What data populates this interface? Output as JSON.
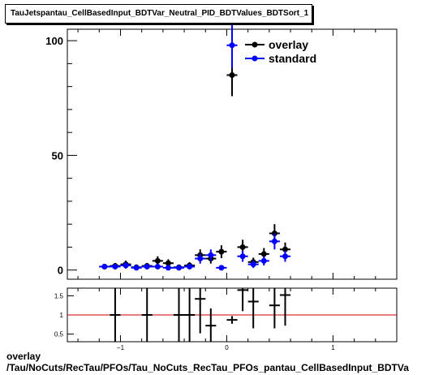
{
  "title": "TauJetspantau_CellBasedInput_BDTVar_Neutral_PID_BDTValues_BDTSort_1",
  "footer": {
    "line1": "overlay",
    "line2": "/Tau/NoCuts/RecTau/PFOs/Tau_NoCuts_RecTau_PFOs_pantau_CellBasedInput_BDTVa"
  },
  "colors": {
    "overlay": "#000000",
    "standard": "#0000ff",
    "ratio_line": "#cc0000"
  },
  "chart_data": [
    {
      "type": "scatter",
      "title": "TauJetspantau_CellBasedInput_BDTVar_Neutral_PID_BDTValues_BDTSort_1",
      "xlim": [
        -1.5,
        1.6
      ],
      "ylim": [
        -4,
        105
      ],
      "x_ticks": [
        -1,
        0,
        1
      ],
      "x_tick_labels": [
        "",
        "",
        ""
      ],
      "y_ticks": [
        0,
        50,
        100
      ],
      "y_tick_labels": [
        "0",
        "50",
        "100"
      ],
      "legend_position": "top-right",
      "series": [
        {
          "name": "overlay",
          "color": "#000000",
          "x": [
            -1.15,
            -1.05,
            -0.95,
            -0.85,
            -0.75,
            -0.65,
            -0.55,
            -0.45,
            -0.35,
            -0.25,
            -0.15,
            -0.05,
            0.05,
            0.15,
            0.25,
            0.35,
            0.45,
            0.55
          ],
          "y": [
            1.5,
            1.8,
            2.5,
            1.2,
            1.8,
            4,
            3,
            1.2,
            2,
            6.5,
            5,
            8,
            85,
            10,
            3.5,
            7,
            16,
            9
          ],
          "yerr": [
            1.2,
            1.3,
            1.6,
            1.1,
            1.3,
            2,
            1.7,
            1.1,
            1.4,
            2.5,
            2.2,
            2.8,
            9.2,
            3.2,
            1.9,
            2.6,
            4,
            3
          ]
        },
        {
          "name": "standard",
          "color": "#0000ff",
          "x": [
            -1.15,
            -1.05,
            -0.95,
            -0.85,
            -0.75,
            -0.65,
            -0.55,
            -0.45,
            -0.35,
            -0.25,
            -0.15,
            -0.05,
            0.05,
            0.15,
            0.25,
            0.35,
            0.45,
            0.55
          ],
          "y": [
            1.5,
            1.5,
            2,
            1,
            1.5,
            1.5,
            1,
            1,
            1.5,
            5,
            6.5,
            1,
            98,
            6,
            2.5,
            4,
            12.5,
            6
          ],
          "yerr": [
            1.2,
            1.2,
            1.4,
            1,
            1.2,
            1.2,
            1,
            1,
            1.2,
            2.2,
            2.5,
            1,
            9.9,
            2.4,
            1.6,
            2,
            3.5,
            2.4
          ]
        }
      ]
    },
    {
      "type": "scatter",
      "title": "",
      "xlim": [
        -1.5,
        1.6
      ],
      "ylim": [
        0.3,
        1.7
      ],
      "x_ticks": [
        -1,
        0,
        1
      ],
      "x_tick_labels": [
        "−1",
        "0",
        "1"
      ],
      "y_ticks": [
        0.5,
        1,
        1.5
      ],
      "y_tick_labels": [
        "0.5",
        "1",
        "1.5"
      ],
      "reference_line": 1,
      "series": [
        {
          "name": "ratio",
          "color": "#000000",
          "x": [
            -1.05,
            -0.75,
            -0.45,
            -0.35,
            -0.25,
            -0.15,
            0.05,
            0.15,
            0.25,
            0.45,
            0.55
          ],
          "y": [
            1.0,
            1.0,
            1.0,
            1.0,
            1.42,
            0.72,
            0.87,
            1.65,
            1.35,
            1.25,
            1.52
          ],
          "yerr": [
            1.1,
            1.1,
            1.1,
            1.1,
            0.9,
            0.45,
            0.1,
            0.55,
            0.7,
            0.6,
            0.8
          ]
        }
      ]
    }
  ]
}
